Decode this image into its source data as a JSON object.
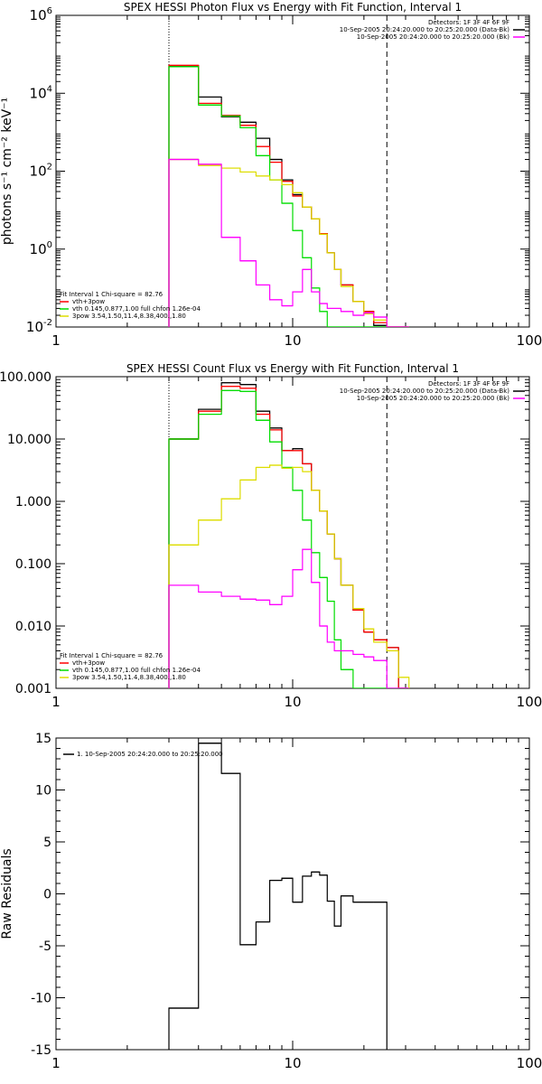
{
  "chart_data": [
    {
      "type": "line",
      "title": "SPEX HESSI Photon Flux vs Energy with Fit Function, Interval 1",
      "ylabel": "photons s⁻¹ cm⁻² keV⁻¹",
      "xlabel": "",
      "x_scale": "log",
      "y_scale": "log",
      "xlim": [
        1,
        100
      ],
      "ylim": [
        0.01,
        1000000
      ],
      "x_ticks": [
        1,
        10,
        100
      ],
      "x_tick_labels": [
        "1",
        "10",
        "100"
      ],
      "y_ticks": [
        0.01,
        1,
        100,
        10000,
        1000000
      ],
      "y_tick_labels": [
        {
          "base": "10",
          "exp": "-2"
        },
        {
          "base": "10",
          "exp": "0"
        },
        {
          "base": "10",
          "exp": "2"
        },
        {
          "base": "10",
          "exp": "4"
        },
        {
          "base": "10",
          "exp": "6"
        }
      ],
      "vlines": [
        {
          "x": 3,
          "style": "dotted"
        },
        {
          "x": 25,
          "style": "dashed"
        }
      ],
      "legend_top_right": [
        {
          "text": "Detectors: 1F 3F 4F 6F 9F",
          "color": ""
        },
        {
          "text": "10-Sep-2005 20:24:20.000 to 20:25:20.000 (Data-Bk)",
          "color": "#000000"
        },
        {
          "text": "10-Sep-2005 20:24:20.000 to 20:25:20.000 (Bk)",
          "color": "#ff00ff"
        }
      ],
      "legend_bottom_left": [
        {
          "text": "Fit Interval 1   Chi-square = 82.76",
          "color": ""
        },
        {
          "text": "vth+3pow",
          "color": "#ff0000"
        },
        {
          "text": "vth 0.145,0.877,1.00  full chfon 1.26e-04",
          "color": "#00dd00"
        },
        {
          "text": "3pow 3.54,1.50,11.4,8.38,400.,1.80",
          "color": "#dddd00"
        }
      ],
      "bin_edges": [
        3,
        4,
        5,
        6,
        7,
        8,
        9,
        10,
        11,
        12,
        13,
        14,
        15,
        16,
        18,
        20,
        22,
        25,
        28,
        31
      ],
      "series": [
        {
          "name": "Data-Bk",
          "color": "#000000",
          "values": [
            50000,
            8000,
            2500,
            1800,
            700,
            200,
            60,
            25,
            12,
            6,
            2.5,
            0.8,
            0.3,
            0.12,
            0.045,
            0.025,
            0.011,
            0.009,
            0
          ]
        },
        {
          "name": "vth+3pow",
          "color": "#ff0000",
          "values": [
            52000,
            5500,
            2700,
            1500,
            430,
            170,
            55,
            23,
            12,
            6,
            2.5,
            0.8,
            0.3,
            0.12,
            0.045,
            0.025,
            0.013,
            0.009,
            0
          ]
        },
        {
          "name": "vth",
          "color": "#00dd00",
          "values": [
            48000,
            5000,
            2600,
            1300,
            250,
            60,
            15,
            3,
            0.6,
            0.1,
            0.025,
            0.01,
            0,
            0,
            0,
            0,
            0,
            0,
            0
          ]
        },
        {
          "name": "3pow",
          "color": "#dddd00",
          "values": [
            200,
            140,
            120,
            95,
            75,
            60,
            45,
            28,
            12,
            6,
            2.4,
            0.8,
            0.3,
            0.11,
            0.045,
            0.022,
            0.015,
            0.01,
            0.007
          ]
        },
        {
          "name": "Bk",
          "color": "#ff00ff",
          "values": [
            200,
            150,
            2,
            0.5,
            0.12,
            0.05,
            0.035,
            0.08,
            0.3,
            0.08,
            0.04,
            0.03,
            0.03,
            0.025,
            0.02,
            0.023,
            0.018,
            0,
            0
          ]
        }
      ]
    },
    {
      "type": "line",
      "title": "SPEX HESSI Count Flux vs Energy with Fit Function, Interval 1",
      "ylabel": "",
      "xlabel": "",
      "x_scale": "log",
      "y_scale": "log",
      "xlim": [
        1,
        100
      ],
      "ylim": [
        0.001,
        100
      ],
      "x_ticks": [
        1,
        10,
        100
      ],
      "x_tick_labels": [
        "1",
        "10",
        "100"
      ],
      "y_ticks": [
        0.001,
        0.01,
        0.1,
        1,
        10,
        100
      ],
      "y_tick_labels": [
        "0.001",
        "0.010",
        "0.100",
        "1.000",
        "10.000",
        "100.000"
      ],
      "vlines": [
        {
          "x": 3,
          "style": "dotted"
        },
        {
          "x": 25,
          "style": "dashed"
        }
      ],
      "legend_top_right": [
        {
          "text": "Detectors: 1F 3F 4F 6F 9F",
          "color": ""
        },
        {
          "text": "10-Sep-2005 20:24:20.000 to 20:25:20.000 (Data-Bk)",
          "color": "#000000"
        },
        {
          "text": "10-Sep-2005 20:24:20.000 to 20:25:20.000 (Bk)",
          "color": "#ff00ff"
        }
      ],
      "legend_bottom_left": [
        {
          "text": "Fit Interval 1   Chi-square = 82.76",
          "color": ""
        },
        {
          "text": "vth+3pow",
          "color": "#ff0000"
        },
        {
          "text": "vth 0.145,0.877,1.00  full chfon 1.26e-04",
          "color": "#00dd00"
        },
        {
          "text": "3pow 3.54,1.50,11.4,8.38,400.,1.80",
          "color": "#dddd00"
        }
      ],
      "bin_edges": [
        3,
        4,
        5,
        6,
        7,
        8,
        9,
        10,
        11,
        12,
        13,
        14,
        15,
        16,
        18,
        20,
        22,
        25,
        28,
        31
      ],
      "series": [
        {
          "name": "Data-Bk",
          "color": "#000000",
          "values": [
            10,
            30,
            80,
            75,
            28,
            15,
            6.5,
            7,
            4,
            1.5,
            0.7,
            0.3,
            0.12,
            0.045,
            0.018,
            0.008,
            0.006,
            0.0045,
            0
          ]
        },
        {
          "name": "vth+3pow",
          "color": "#ff0000",
          "values": [
            10,
            28,
            70,
            65,
            25,
            14,
            6.5,
            6.5,
            4,
            1.5,
            0.7,
            0.3,
            0.12,
            0.045,
            0.018,
            0.008,
            0.006,
            0.0045,
            0
          ]
        },
        {
          "name": "vth",
          "color": "#00dd00",
          "values": [
            10,
            25,
            60,
            58,
            20,
            9,
            3.5,
            1.5,
            0.5,
            0.15,
            0.06,
            0.025,
            0.006,
            0.002,
            0,
            0,
            0,
            0,
            0
          ]
        },
        {
          "name": "3pow",
          "color": "#dddd00",
          "values": [
            0.2,
            0.5,
            1.1,
            2.2,
            3.5,
            3.8,
            3.4,
            3.5,
            3,
            1.5,
            0.7,
            0.3,
            0.12,
            0.045,
            0.019,
            0.009,
            0.0055,
            0.004,
            0.0015
          ]
        },
        {
          "name": "Bk",
          "color": "#ff00ff",
          "values": [
            0.045,
            0.035,
            0.03,
            0.027,
            0.026,
            0.022,
            0.03,
            0.08,
            0.17,
            0.05,
            0.01,
            0.0055,
            0.004,
            0.004,
            0.0035,
            0.0032,
            0.0028,
            0,
            0
          ]
        }
      ]
    },
    {
      "type": "line",
      "title": "",
      "ylabel": "Raw Residuals",
      "xlabel": "",
      "x_scale": "log",
      "y_scale": "linear",
      "xlim": [
        1,
        100
      ],
      "ylim": [
        -15,
        15
      ],
      "x_ticks": [
        1,
        10,
        100
      ],
      "x_tick_labels": [
        "1",
        "10",
        "100"
      ],
      "y_ticks": [
        -15,
        -10,
        -5,
        0,
        5,
        10,
        15
      ],
      "y_tick_labels": [
        "-15",
        "-10",
        "-5",
        "0",
        "5",
        "10",
        "15"
      ],
      "legend_top_left": [
        {
          "text": "1. 10-Sep-2005 20:24:20.000 to 20:25:20.000",
          "color": "#000000"
        }
      ],
      "bin_edges": [
        3,
        4,
        5,
        6,
        7,
        8,
        9,
        10,
        11,
        12,
        13,
        14,
        15,
        16,
        18,
        20,
        22,
        25
      ],
      "series": [
        {
          "name": "1. 10-Sep-2005 20:24:20.000 to 20:25:20.000",
          "color": "#000000",
          "values": [
            -11,
            14.5,
            11.6,
            -4.9,
            -2.7,
            1.3,
            1.5,
            -0.8,
            1.7,
            2.1,
            1.8,
            -0.7,
            -3.1,
            -0.2,
            -0.8,
            -0.8,
            -0.8
          ]
        }
      ]
    }
  ]
}
